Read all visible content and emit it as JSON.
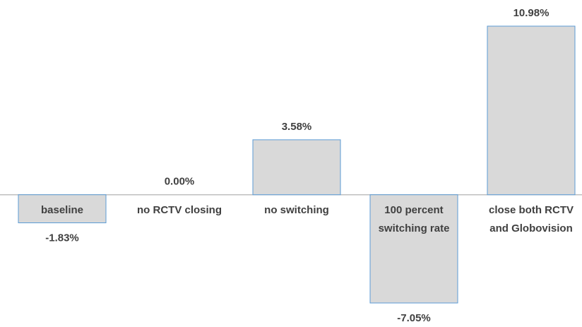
{
  "chart_data": {
    "type": "bar",
    "categories": [
      "baseline",
      "no RCTV closing",
      "no switching",
      "100 percent switching rate",
      "close both RCTV and Globovision"
    ],
    "values": [
      -1.83,
      0,
      3.58,
      -7.05,
      10.98
    ],
    "value_labels": [
      "-1.83%",
      "0.00%",
      "3.58%",
      "-7.05%",
      "10.98%"
    ],
    "color": "#d9d9d9",
    "edgecolor": "#5b9bd5"
  }
}
